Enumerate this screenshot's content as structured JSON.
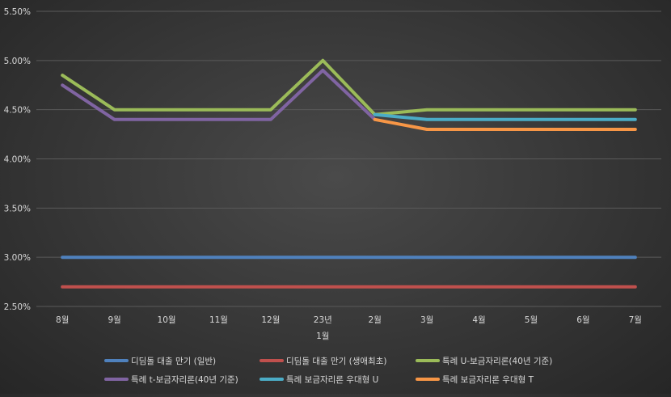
{
  "chart_data": {
    "type": "line",
    "categories": [
      "8월",
      "9월",
      "10월",
      "11월",
      "12월",
      "23년",
      "2월",
      "3월",
      "4월",
      "5월",
      "6월",
      "7월"
    ],
    "x_sublabel": "1월",
    "ylim": [
      2.5,
      5.5
    ],
    "ytick_values": [
      2.5,
      3.0,
      3.5,
      4.0,
      4.5,
      5.0,
      5.5
    ],
    "ytick_labels": [
      "2.50%",
      "3.00%",
      "3.50%",
      "4.00%",
      "4.50%",
      "5.00%",
      "5.50%"
    ],
    "grid": true,
    "legend_position": "bottom",
    "series": [
      {
        "name": "디딤돌 대출 만기 (일반)",
        "color": "#4f81bd",
        "values": [
          3.0,
          3.0,
          3.0,
          3.0,
          3.0,
          3.0,
          3.0,
          3.0,
          3.0,
          3.0,
          3.0,
          3.0
        ]
      },
      {
        "name": "디딤돌 대출 만기 (생애최초)",
        "color": "#c0504d",
        "values": [
          2.7,
          2.7,
          2.7,
          2.7,
          2.7,
          2.7,
          2.7,
          2.7,
          2.7,
          2.7,
          2.7,
          2.7
        ]
      },
      {
        "name": "특례 U-보금자리론(40년 기준)",
        "color": "#9bbb59",
        "values": [
          4.85,
          4.5,
          4.5,
          4.5,
          4.5,
          5.0,
          4.45,
          4.5,
          4.5,
          4.5,
          4.5,
          4.5
        ]
      },
      {
        "name": "특례 t-보금자리론(40년 기준)",
        "color": "#8064a2",
        "values": [
          4.75,
          4.4,
          4.4,
          4.4,
          4.4,
          4.9,
          4.4,
          null,
          null,
          null,
          null,
          null
        ]
      },
      {
        "name": "특례 보금자리론 우대형 U",
        "color": "#4bacc6",
        "values": [
          null,
          null,
          null,
          null,
          null,
          null,
          4.45,
          4.4,
          4.4,
          4.4,
          4.4,
          4.4
        ]
      },
      {
        "name": "특례 보금자리론 우대형 T",
        "color": "#f79646",
        "values": [
          null,
          null,
          null,
          null,
          null,
          null,
          4.4,
          4.3,
          4.3,
          4.3,
          4.3,
          4.3
        ]
      }
    ]
  }
}
